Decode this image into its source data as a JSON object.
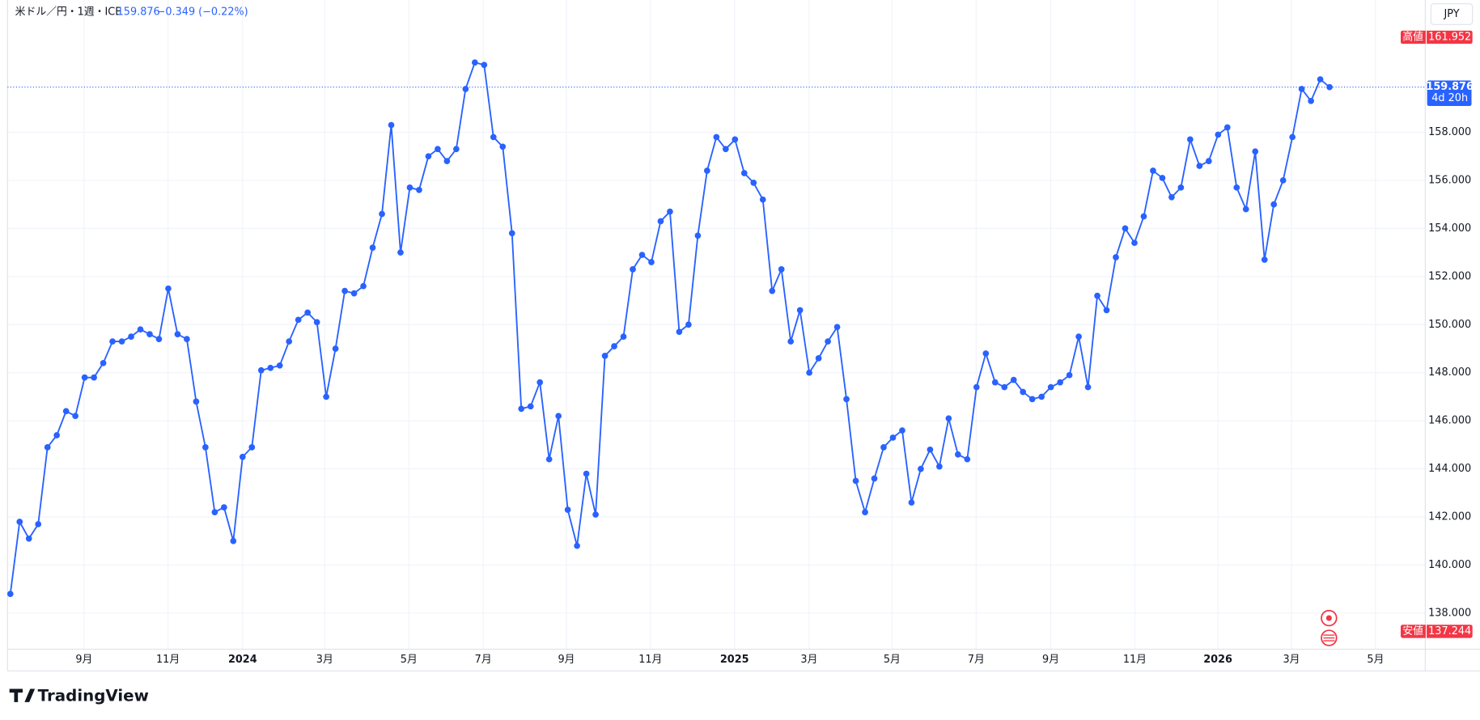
{
  "chart_data": {
    "type": "line",
    "title": "米ドル／円・1週・ICE",
    "last_price": 159.876,
    "change": "−0.349 (−0.22%)",
    "currency": "JPY",
    "countdown": "4d 20h",
    "high": {
      "name": "高値",
      "value": 161.952
    },
    "low": {
      "name": "安値",
      "value": 137.244
    },
    "brand": "TradingView",
    "series": [
      {
        "name": "米ドル／円",
        "color": "#2962ff",
        "values": [
          138.8,
          141.8,
          141.1,
          141.7,
          144.9,
          145.4,
          146.4,
          146.2,
          147.8,
          147.8,
          148.4,
          149.3,
          149.3,
          149.5,
          149.8,
          149.6,
          149.4,
          151.5,
          149.6,
          149.4,
          146.8,
          144.9,
          142.2,
          142.4,
          141.0,
          144.5,
          144.9,
          148.1,
          148.2,
          148.3,
          149.3,
          150.2,
          150.5,
          150.1,
          147.0,
          149.0,
          151.4,
          151.3,
          151.6,
          153.2,
          154.6,
          158.3,
          153.0,
          155.7,
          155.6,
          157.0,
          157.3,
          156.8,
          157.3,
          159.8,
          160.9,
          160.8,
          157.8,
          157.4,
          153.8,
          146.5,
          146.6,
          147.6,
          144.4,
          146.2,
          142.3,
          140.8,
          143.8,
          142.1,
          148.7,
          149.1,
          149.5,
          152.3,
          152.9,
          152.6,
          154.3,
          154.7,
          149.7,
          150.0,
          153.7,
          156.4,
          157.8,
          157.3,
          157.7,
          156.3,
          155.9,
          155.2,
          151.4,
          152.3,
          149.3,
          150.6,
          148.0,
          148.6,
          149.3,
          149.9,
          146.9,
          143.5,
          142.2,
          143.6,
          144.9,
          145.3,
          145.6,
          142.6,
          144.0,
          144.8,
          144.1,
          146.1,
          144.6,
          144.4,
          147.4,
          148.8,
          147.6,
          147.4,
          147.7,
          147.2,
          146.9,
          147.0,
          147.4,
          147.6,
          147.9,
          149.5,
          147.4,
          151.2,
          150.6,
          152.8,
          154.0,
          153.4,
          154.5,
          156.4,
          156.1,
          155.3,
          155.7,
          157.7,
          156.6,
          156.8,
          157.9,
          158.2,
          155.7,
          154.8,
          157.2,
          152.7,
          155.0,
          156.0,
          157.8,
          159.8,
          159.3,
          160.2,
          159.876
        ]
      }
    ],
    "xlim": [
      -0.3,
      152.3
    ],
    "xticks": [
      {
        "value": 7.93,
        "label": "9月"
      },
      {
        "value": 16.97,
        "label": "11月"
      },
      {
        "value": 25.0,
        "label": "2024"
      },
      {
        "value": 33.84,
        "label": "3月"
      },
      {
        "value": 42.9,
        "label": "5月"
      },
      {
        "value": 50.9,
        "label": "7月"
      },
      {
        "value": 59.86,
        "label": "9月"
      },
      {
        "value": 68.9,
        "label": "11月"
      },
      {
        "value": 77.95,
        "label": "2025"
      },
      {
        "value": 85.98,
        "label": "3月"
      },
      {
        "value": 94.9,
        "label": "5月"
      },
      {
        "value": 103.96,
        "label": "7月"
      },
      {
        "value": 111.99,
        "label": "9月"
      },
      {
        "value": 121.04,
        "label": "11月"
      },
      {
        "value": 129.98,
        "label": "2026"
      },
      {
        "value": 137.9,
        "label": "3月"
      },
      {
        "value": 146.95,
        "label": "5月"
      }
    ],
    "ylim": [
      136.5,
      163.5
    ],
    "yticks": [
      {
        "value": 138,
        "label": "138.000"
      },
      {
        "value": 140,
        "label": "140.000"
      },
      {
        "value": 142,
        "label": "142.000"
      },
      {
        "value": 144,
        "label": "144.000"
      },
      {
        "value": 146,
        "label": "146.000"
      },
      {
        "value": 148,
        "label": "148.000"
      },
      {
        "value": 150,
        "label": "150.000"
      },
      {
        "value": 152,
        "label": "152.000"
      },
      {
        "value": 154,
        "label": "154.000"
      },
      {
        "value": 156,
        "label": "156.000"
      },
      {
        "value": 158,
        "label": "158.000"
      }
    ],
    "grid": true
  }
}
